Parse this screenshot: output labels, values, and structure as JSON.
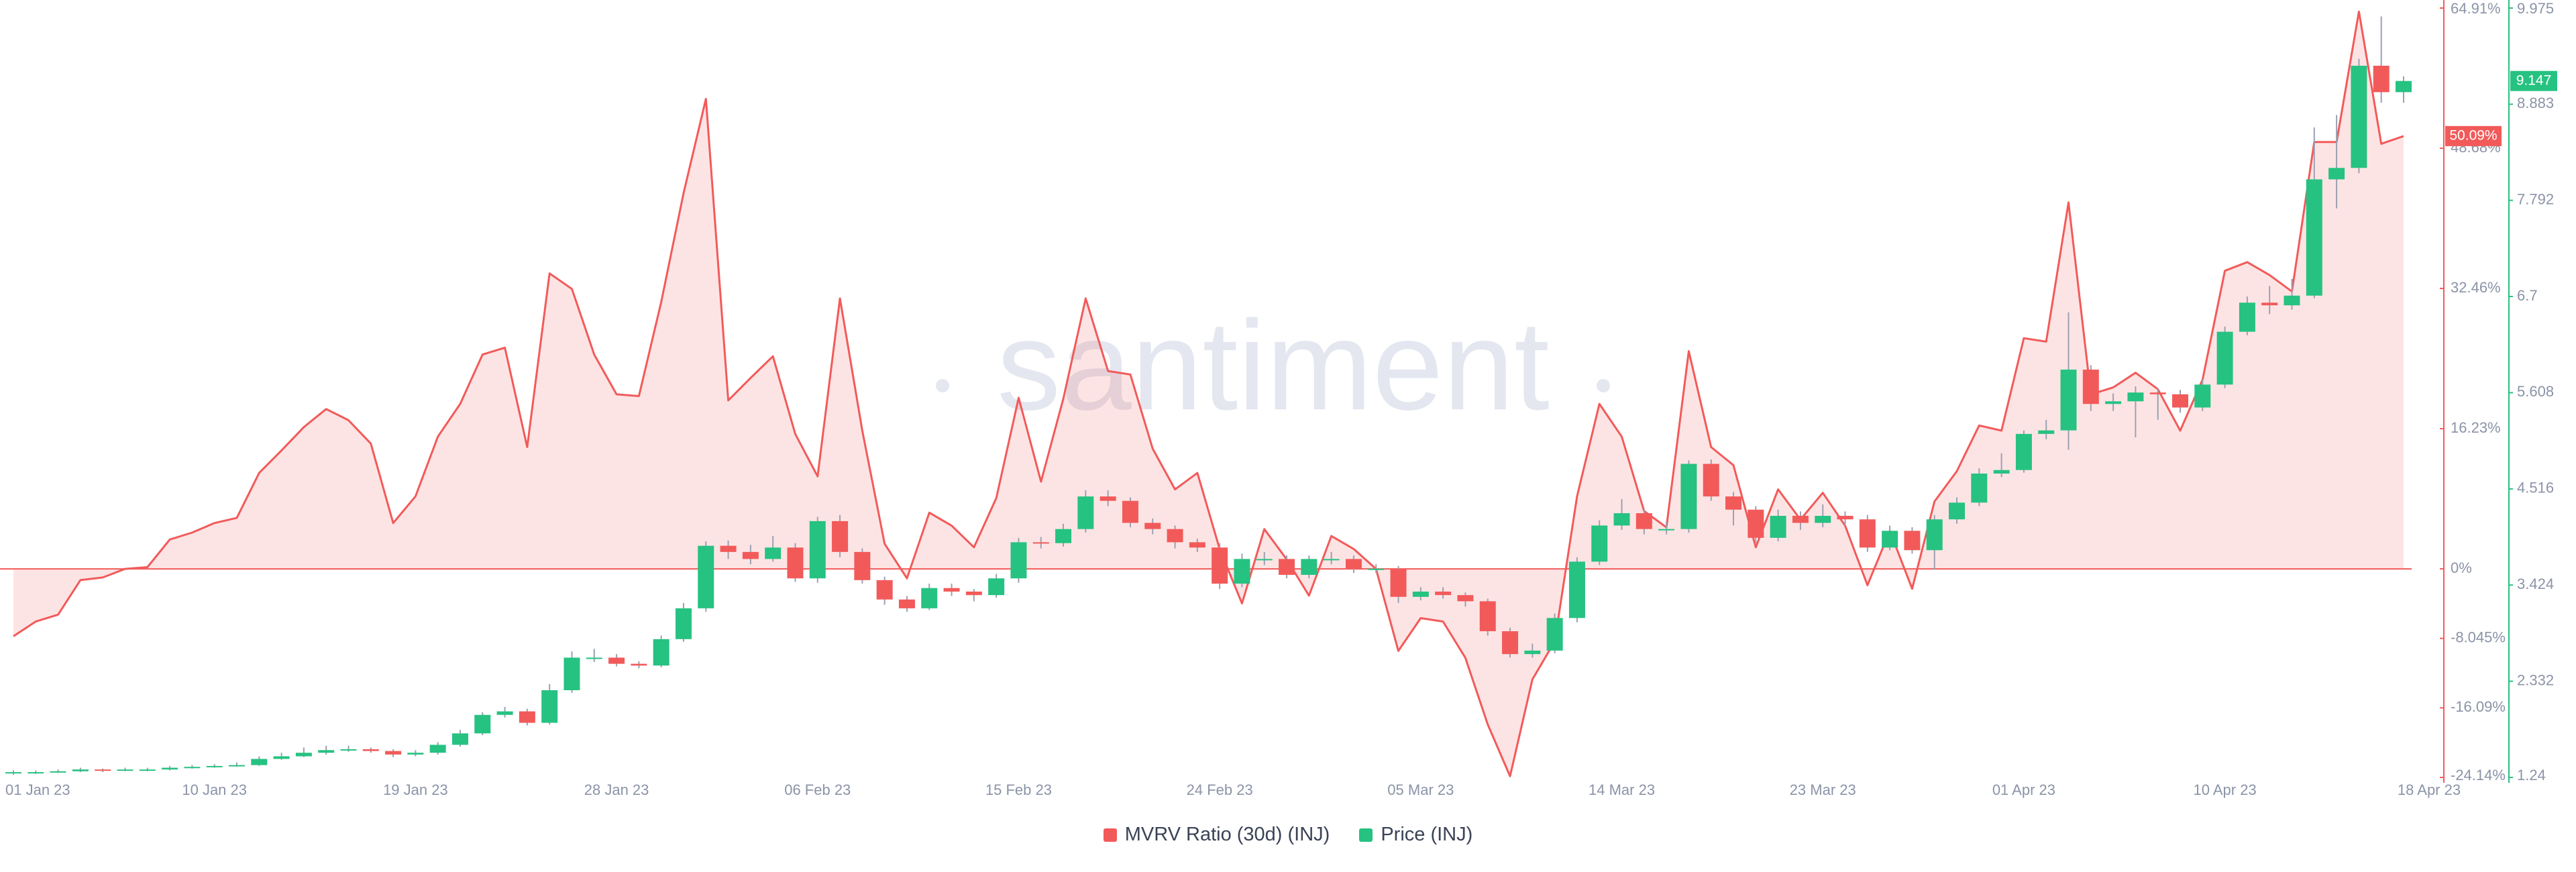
{
  "chart_data": {
    "type": "combo",
    "watermark": "santiment",
    "categories": [
      "01 Jan 23",
      null,
      null,
      null,
      null,
      null,
      null,
      null,
      null,
      "10 Jan 23",
      null,
      null,
      null,
      null,
      null,
      null,
      null,
      null,
      "19 Jan 23",
      null,
      null,
      null,
      null,
      null,
      null,
      null,
      null,
      "28 Jan 23",
      null,
      null,
      null,
      null,
      null,
      null,
      null,
      null,
      "06 Feb 23",
      null,
      null,
      null,
      null,
      null,
      null,
      null,
      null,
      "15 Feb 23",
      null,
      null,
      null,
      null,
      null,
      null,
      null,
      null,
      "24 Feb 23",
      null,
      null,
      null,
      null,
      null,
      null,
      null,
      null,
      "05 Mar 23",
      null,
      null,
      null,
      null,
      null,
      null,
      null,
      null,
      "14 Mar 23",
      null,
      null,
      null,
      null,
      null,
      null,
      null,
      null,
      "23 Mar 23",
      null,
      null,
      null,
      null,
      null,
      null,
      null,
      null,
      "01 Apr 23",
      null,
      null,
      null,
      null,
      null,
      null,
      null,
      null,
      "10 Apr 23",
      null,
      null,
      null,
      null,
      null,
      null,
      null,
      "18 Apr 23"
    ],
    "ylim": [
      -24.14,
      64.91
    ],
    "yticks": [
      {
        "value": 64.91,
        "label": "64.91%"
      },
      {
        "value": 48.68,
        "label": "48.68%"
      },
      {
        "value": 32.46,
        "label": "32.46%"
      },
      {
        "value": 16.23,
        "label": "16.23%"
      },
      {
        "value": 0,
        "label": "0%"
      },
      {
        "value": -8.045,
        "label": "-8.045%"
      },
      {
        "value": -16.09,
        "label": "-16.09%"
      },
      {
        "value": -24.14,
        "label": "-24.14%"
      }
    ],
    "y2lim": [
      1.24,
      9.975
    ],
    "y2ticks": [
      9.975,
      8.883,
      7.792,
      6.7,
      5.608,
      4.516,
      3.424,
      2.332,
      1.24
    ],
    "grid": false,
    "zero_line": true,
    "legend": "bottom",
    "series": [
      {
        "name": "MVRV Ratio (30d) (INJ)",
        "type": "area",
        "color": "#f25a5a",
        "last_label": "50.09%",
        "values": [
          -7.8,
          -6.1,
          -5.3,
          -1.3,
          -1.0,
          0,
          0.2,
          3.4,
          4.2,
          5.3,
          5.9,
          11.1,
          13.7,
          16.4,
          18.5,
          17.2,
          14.5,
          5.3,
          8.4,
          15.3,
          19.1,
          24.8,
          25.6,
          14.1,
          34.2,
          32.4,
          24.8,
          20.2,
          20.0,
          30.9,
          43.5,
          54.4,
          19.5,
          22.1,
          24.6,
          15.6,
          10.7,
          31.3,
          16.0,
          2.9,
          -1.1,
          6.5,
          5.0,
          2.5,
          8.2,
          19.8,
          10.1,
          19.7,
          31.3,
          22.9,
          22.5,
          13.9,
          9.2,
          11.1,
          2.3,
          -4.0,
          4.6,
          1.1,
          -3.1,
          3.8,
          2.3,
          0,
          -9.5,
          -5.7,
          -6.1,
          -10.3,
          -18.0,
          -24.0,
          -12.8,
          -8.4,
          8.4,
          19.1,
          15.3,
          6.7,
          4.8,
          25.2,
          14.1,
          12.0,
          2.5,
          9.2,
          5.7,
          8.8,
          5.0,
          -1.9,
          4.4,
          -2.3,
          7.8,
          11.3,
          16.6,
          16.0,
          26.7,
          26.3,
          42.4,
          20.2,
          21.0,
          22.7,
          20.8,
          16.0,
          21.9,
          34.5,
          35.5,
          34.0,
          32.1,
          49.4,
          49.4,
          64.5,
          49.2,
          50.09
        ]
      },
      {
        "name": "Price (INJ)",
        "type": "candlestick",
        "axis": "y2",
        "color": "#26c281",
        "down_color": "#f25a5a",
        "open": [
          1.29,
          1.3,
          1.3,
          1.31,
          1.33,
          1.32,
          1.33,
          1.33,
          1.35,
          1.36,
          1.37,
          1.38,
          1.45,
          1.48,
          1.52,
          1.55,
          1.56,
          1.54,
          1.5,
          1.52,
          1.61,
          1.74,
          1.95,
          1.99,
          1.86,
          2.23,
          2.6,
          2.6,
          2.53,
          2.51,
          2.81,
          3.16,
          3.87,
          3.8,
          3.72,
          3.85,
          3.5,
          4.15,
          3.8,
          3.48,
          3.26,
          3.16,
          3.39,
          3.35,
          3.31,
          3.5,
          3.91,
          3.9,
          4.06,
          4.43,
          4.38,
          4.13,
          4.06,
          3.91,
          3.85,
          3.44,
          3.72,
          3.72,
          3.54,
          3.72,
          3.72,
          3.61,
          3.61,
          3.29,
          3.35,
          3.31,
          3.24,
          2.9,
          2.64,
          2.68,
          3.05,
          3.69,
          4.1,
          4.24,
          4.06,
          4.06,
          4.8,
          4.43,
          4.28,
          3.96,
          4.21,
          4.13,
          4.21,
          4.17,
          3.85,
          4.04,
          3.82,
          4.17,
          4.36,
          4.69,
          4.73,
          5.14,
          5.18,
          5.87,
          5.48,
          5.51,
          5.61,
          5.59,
          5.44,
          5.7,
          6.3,
          6.63,
          6.6,
          6.71,
          8.03,
          8.16,
          9.32,
          9.02
        ],
        "high": [
          1.32,
          1.32,
          1.33,
          1.35,
          1.34,
          1.35,
          1.35,
          1.37,
          1.38,
          1.39,
          1.41,
          1.48,
          1.52,
          1.58,
          1.6,
          1.6,
          1.58,
          1.56,
          1.55,
          1.64,
          1.78,
          1.98,
          2.04,
          2.02,
          2.3,
          2.67,
          2.7,
          2.64,
          2.56,
          2.85,
          3.22,
          3.92,
          3.93,
          3.88,
          3.98,
          3.9,
          4.2,
          4.22,
          3.84,
          3.52,
          3.3,
          3.44,
          3.44,
          3.38,
          3.55,
          3.96,
          3.97,
          4.12,
          4.5,
          4.5,
          4.42,
          4.18,
          4.1,
          3.95,
          3.9,
          3.78,
          3.8,
          3.76,
          3.76,
          3.8,
          3.76,
          3.66,
          3.64,
          3.4,
          3.4,
          3.34,
          3.27,
          2.94,
          2.76,
          3.1,
          3.74,
          4.16,
          4.4,
          4.28,
          4.14,
          4.84,
          4.85,
          4.48,
          4.32,
          4.28,
          4.26,
          4.34,
          4.26,
          4.22,
          4.1,
          4.08,
          4.22,
          4.42,
          4.75,
          4.92,
          5.18,
          5.3,
          6.52,
          5.92,
          5.6,
          5.68,
          5.66,
          5.64,
          5.76,
          6.36,
          6.7,
          6.82,
          6.9,
          8.62,
          8.76,
          9.4,
          9.88,
          9.2
        ],
        "low": [
          1.27,
          1.28,
          1.29,
          1.3,
          1.3,
          1.31,
          1.31,
          1.32,
          1.34,
          1.35,
          1.36,
          1.37,
          1.44,
          1.47,
          1.5,
          1.53,
          1.52,
          1.47,
          1.48,
          1.5,
          1.59,
          1.72,
          1.92,
          1.83,
          1.84,
          2.2,
          2.55,
          2.5,
          2.48,
          2.49,
          2.78,
          3.12,
          3.72,
          3.66,
          3.69,
          3.46,
          3.45,
          3.74,
          3.44,
          3.2,
          3.12,
          3.14,
          3.3,
          3.24,
          3.28,
          3.45,
          3.84,
          3.86,
          4.02,
          4.32,
          4.08,
          4.0,
          3.84,
          3.8,
          3.38,
          3.4,
          3.65,
          3.5,
          3.5,
          3.66,
          3.56,
          3.56,
          3.22,
          3.25,
          3.27,
          3.18,
          2.85,
          2.6,
          2.6,
          2.65,
          3.0,
          3.65,
          4.05,
          4.0,
          4.0,
          4.02,
          4.38,
          4.1,
          3.9,
          3.92,
          4.05,
          4.08,
          4.1,
          3.8,
          3.82,
          3.78,
          3.6,
          4.12,
          4.32,
          4.65,
          4.7,
          5.08,
          4.96,
          5.4,
          5.4,
          5.1,
          5.3,
          5.38,
          5.4,
          5.66,
          6.26,
          6.5,
          6.55,
          6.68,
          7.7,
          8.1,
          8.9,
          8.9
        ],
        "close": [
          1.3,
          1.3,
          1.31,
          1.33,
          1.32,
          1.33,
          1.33,
          1.35,
          1.36,
          1.37,
          1.38,
          1.45,
          1.48,
          1.52,
          1.55,
          1.56,
          1.54,
          1.5,
          1.52,
          1.61,
          1.74,
          1.95,
          1.99,
          1.86,
          2.23,
          2.6,
          2.6,
          2.53,
          2.51,
          2.81,
          3.16,
          3.87,
          3.8,
          3.72,
          3.85,
          3.5,
          4.15,
          3.8,
          3.48,
          3.26,
          3.16,
          3.39,
          3.35,
          3.31,
          3.5,
          3.91,
          3.9,
          4.06,
          4.43,
          4.38,
          4.13,
          4.06,
          3.91,
          3.85,
          3.44,
          3.72,
          3.72,
          3.54,
          3.72,
          3.72,
          3.61,
          3.61,
          3.29,
          3.35,
          3.31,
          3.24,
          2.9,
          2.64,
          2.68,
          3.05,
          3.69,
          4.1,
          4.24,
          4.06,
          4.06,
          4.8,
          4.43,
          4.28,
          3.96,
          4.21,
          4.13,
          4.21,
          4.17,
          3.85,
          4.04,
          3.82,
          4.17,
          4.36,
          4.69,
          4.73,
          5.14,
          5.18,
          5.87,
          5.48,
          5.51,
          5.61,
          5.59,
          5.44,
          5.7,
          6.3,
          6.63,
          6.6,
          6.71,
          8.03,
          8.16,
          9.32,
          9.02,
          9.147
        ]
      }
    ]
  }
}
